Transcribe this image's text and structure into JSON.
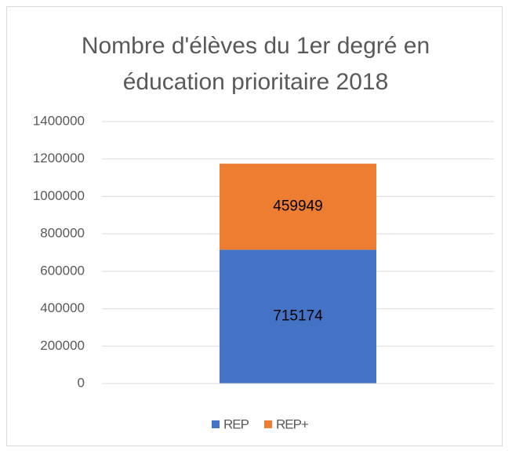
{
  "chart_data": {
    "type": "stacked_bar",
    "title": "Nombre d'élèves du 1er degré en éducation prioritaire 2018",
    "categories": [
      null
    ],
    "series": [
      {
        "name": "REP",
        "color": "#4472c4",
        "values": [
          715174
        ]
      },
      {
        "name": "REP+",
        "color": "#ed7d31",
        "values": [
          459949
        ]
      }
    ],
    "ylim": [
      0,
      1400000
    ],
    "yticks": [
      0,
      200000,
      400000,
      600000,
      800000,
      1000000,
      1200000,
      1400000
    ],
    "grid": true,
    "legend": "bottom"
  }
}
